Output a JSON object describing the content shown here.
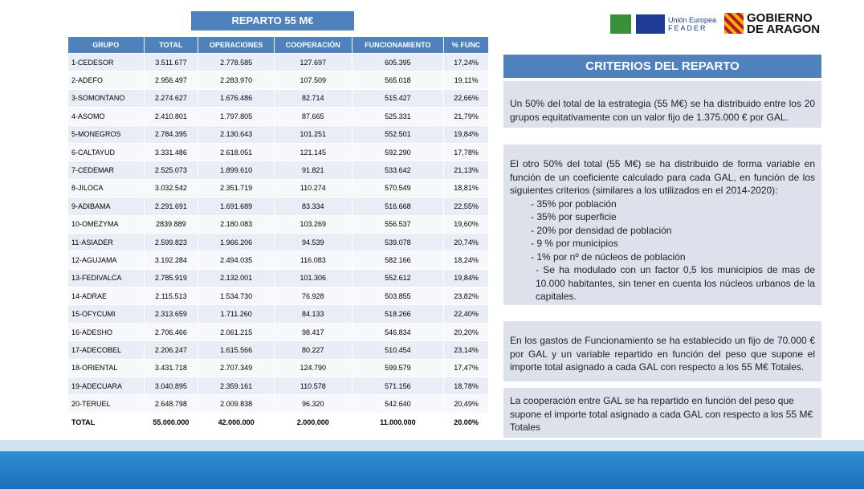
{
  "table": {
    "title": "REPARTO 55 M€",
    "columns": [
      "GRUPO",
      "TOTAL",
      "OPERACIONES",
      "COOPERACIÓN",
      "FUNCIONAMIENTO",
      "% FUNC"
    ],
    "rows": [
      [
        "1-CEDESOR",
        "3.511.677",
        "2.778.585",
        "127.697",
        "605.395",
        "17,24%"
      ],
      [
        "2-ADEFO",
        "2.956.497",
        "2.283.970",
        "107.509",
        "565.018",
        "19,11%"
      ],
      [
        "3-SOMONTANO",
        "2.274.627",
        "1.676.486",
        "82.714",
        "515.427",
        "22,66%"
      ],
      [
        "4-ASOMO",
        "2.410.801",
        "1.797.805",
        "87.665",
        "525.331",
        "21,79%"
      ],
      [
        "5-MONEGROS",
        "2.784.395",
        "2.130.643",
        "101.251",
        "552.501",
        "19,84%"
      ],
      [
        "6-CALTAYUD",
        "3.331.486",
        "2.618.051",
        "121.145",
        "592.290",
        "17,78%"
      ],
      [
        "7-CEDEMAR",
        "2.525.073",
        "1.899.610",
        "91.821",
        "533.642",
        "21,13%"
      ],
      [
        "8-JILOCA",
        "3.032.542",
        "2.351.719",
        "110.274",
        "570.549",
        "18,81%"
      ],
      [
        "9-ADIBAMA",
        "2.291.691",
        "1.691.689",
        "83.334",
        "516.668",
        "22,55%"
      ],
      [
        "10-OMEZYMA",
        "2839.889",
        "2.180.083",
        "103.269",
        "556.537",
        "19,60%"
      ],
      [
        "11-ASIADER",
        "2.599.823",
        "1.966.206",
        "94.539",
        "539.078",
        "20,74%"
      ],
      [
        "12-AGUJAMA",
        "3.192.284",
        "2.494.035",
        "116.083",
        "582.166",
        "18,24%"
      ],
      [
        "13-FEDIVALCA",
        "2.785.919",
        "2.132.001",
        "101.306",
        "552.612",
        "19,84%"
      ],
      [
        "14-ADRAE",
        "2.115.513",
        "1.534.730",
        "76.928",
        "503.855",
        "23,82%"
      ],
      [
        "15-OFYCUMI",
        "2.313.659",
        "1.711.260",
        "84.133",
        "518.266",
        "22,40%"
      ],
      [
        "16-ADESHO",
        "2.706.466",
        "2.061.215",
        "98.417",
        "546.834",
        "20,20%"
      ],
      [
        "17-ADECOBEL",
        "2.206.247",
        "1.615.566",
        "80.227",
        "510.454",
        "23,14%"
      ],
      [
        "18-ORIENTAL",
        "3.431.718",
        "2.707.349",
        "124.790",
        "599.579",
        "17,47%"
      ],
      [
        "19-ADECUARA",
        "3.040.895",
        "2.359.161",
        "110.578",
        "571.156",
        "18,78%"
      ],
      [
        "20-TERUEL",
        "2.648.798",
        "2.009.838",
        "96.320",
        "542.640",
        "20,49%"
      ]
    ],
    "total": [
      "TOTAL",
      "55.000.000",
      "42.000.000",
      "2.000.000",
      "11.000.000",
      "20.00%"
    ]
  },
  "logos": {
    "eu": "Unión Europea",
    "feader": "FEADER",
    "gov1": "GOBIERNO",
    "gov2": "DE ARAGON"
  },
  "criteria": {
    "title": "CRITERIOS DEL REPARTO",
    "block1": "Un 50% del total de la estrategia (55 M€) se ha distribuido entre los 20 grupos equitativamente con un valor fijo de 1.375.000 € por GAL.",
    "block2": {
      "intro": "El otro 50% del total (55 M€) se ha distribuido de forma variable en función de un coeficiente calculado para cada GAL, en función de los siguientes criterios (similares a los utilizados en el 2014-2020):",
      "items": [
        "- 35% por población",
        "- 35% por superficie",
        "- 20% por densidad de población",
        "- 9 % por municipios",
        "- 1% por nº de núcleos de población"
      ],
      "note": "- Se ha modulado con un factor 0,5 los municipios  de mas de 10.000 habitantes, sin tener en cuenta los núcleos urbanos de la capitales."
    },
    "block3": "En los gastos de Funcionamiento se ha establecido un fijo de 70.000 € por GAL y un variable repartido en función del peso que supone el importe total asignado a cada GAL con respecto a los 55 M€ Totales.",
    "block4": "La cooperación entre GAL se ha repartido en función del peso que supone el importe total asignado a cada GAL con respecto a los 55 M€ Totales"
  }
}
